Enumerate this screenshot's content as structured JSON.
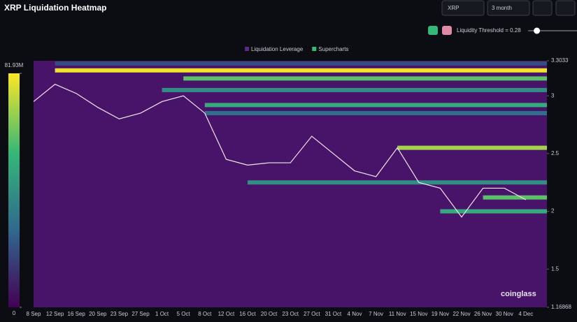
{
  "chart_data": {
    "type": "heatmap",
    "title": "XRP Liquidation Heatmap",
    "symbol": "XRP",
    "range": "3 month",
    "threshold_label": "Liquidity Threshold = 0.28",
    "threshold": 0.28,
    "legend": [
      "Liquidation Leverage",
      "Supercharts"
    ],
    "legend_colors": [
      "#5b2a86",
      "#2fbf71"
    ],
    "watermark": "coinglass",
    "categories": [
      "8 Sep",
      "12 Sep",
      "16 Sep",
      "20 Sep",
      "23 Sep",
      "27 Sep",
      "1 Oct",
      "5 Oct",
      "8 Oct",
      "12 Oct",
      "16 Oct",
      "20 Oct",
      "23 Oct",
      "27 Oct",
      "31 Oct",
      "4 Nov",
      "7 Nov",
      "11 Nov",
      "15 Nov",
      "19 Nov",
      "22 Nov",
      "26 Nov",
      "30 Nov",
      "4 Dec"
    ],
    "series": [
      {
        "name": "Price",
        "color": "#f2e6ee",
        "values": [
          2.95,
          3.1,
          3.02,
          2.9,
          2.8,
          2.85,
          2.95,
          3.0,
          2.85,
          2.45,
          2.4,
          2.42,
          2.42,
          2.65,
          2.5,
          2.35,
          2.3,
          2.55,
          2.25,
          2.2,
          1.95,
          2.2,
          2.2,
          2.1
        ]
      }
    ],
    "bands": [
      {
        "price": 3.28,
        "start": "12 Sep",
        "value": 20000000
      },
      {
        "price": 3.22,
        "start": "12 Sep",
        "value": 80000000
      },
      {
        "price": 3.15,
        "start": "5 Oct",
        "value": 60000000
      },
      {
        "price": 3.05,
        "start": "1 Oct",
        "value": 40000000
      },
      {
        "price": 2.92,
        "start": "8 Oct",
        "value": 50000000
      },
      {
        "price": 2.85,
        "start": "8 Oct",
        "value": 30000000
      },
      {
        "price": 2.55,
        "start": "11 Nov",
        "value": 70000000
      },
      {
        "price": 2.25,
        "start": "16 Oct",
        "value": 40000000
      },
      {
        "price": 2.12,
        "start": "26 Nov",
        "value": 60000000
      },
      {
        "price": 2.0,
        "start": "19 Nov",
        "value": 50000000
      }
    ],
    "ylim": [
      1.16868,
      3.3033
    ],
    "yticks": [
      1.16868,
      1.5,
      2,
      2.5,
      3,
      3.3033
    ],
    "clim": [
      0,
      81930000
    ],
    "cticks": [
      0,
      {
        "value": 81930000,
        "label": "81.93M"
      }
    ]
  }
}
